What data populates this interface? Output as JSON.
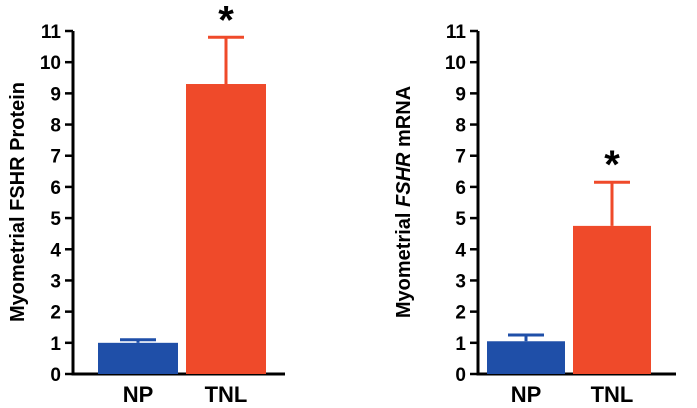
{
  "chart_data": [
    {
      "type": "bar",
      "categories": [
        "NP",
        "TNL"
      ],
      "values": [
        1.0,
        9.3
      ],
      "errors": [
        0.1,
        1.5
      ],
      "colors": [
        "#1F4FA8",
        "#EF4A2A"
      ],
      "ylabel": "Myometrial FSHR Protein",
      "ylim": [
        0,
        11
      ],
      "yticks": [
        "0",
        "1",
        "2",
        "3",
        "4",
        "5",
        "6",
        "7",
        "8",
        "9",
        "10",
        "11"
      ],
      "significance": [
        "",
        "*"
      ],
      "grid": false
    },
    {
      "type": "bar",
      "categories": [
        "NP",
        "TNL"
      ],
      "values": [
        1.05,
        4.75
      ],
      "errors": [
        0.2,
        1.4
      ],
      "colors": [
        "#1F4FA8",
        "#EF4A2A"
      ],
      "ylabel_parts": [
        "Myometrial ",
        "FSHR",
        " mRNA"
      ],
      "ylim": [
        0,
        11
      ],
      "yticks": [
        "0",
        "1",
        "2",
        "3",
        "4",
        "5",
        "6",
        "7",
        "8",
        "9",
        "10",
        "11"
      ],
      "significance": [
        "",
        "*"
      ],
      "grid": false
    }
  ]
}
